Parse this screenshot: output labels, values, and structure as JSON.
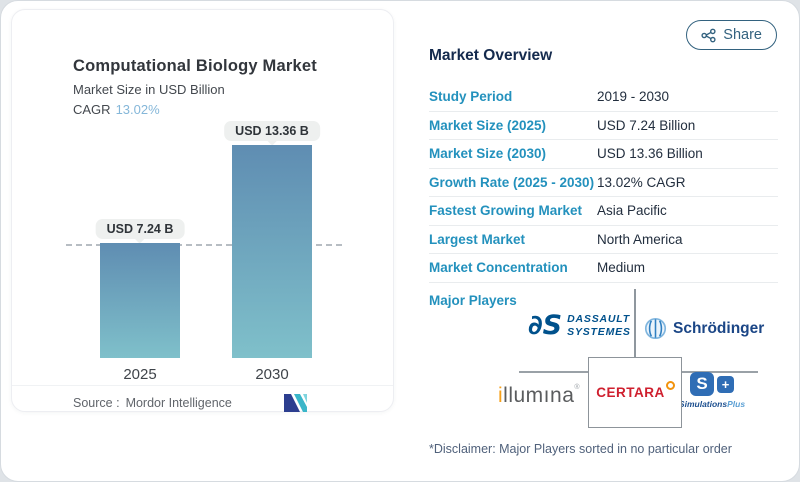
{
  "chart_data": {
    "type": "bar",
    "title": "Computational Biology Market",
    "subtitle": "Market Size in USD Billion",
    "cagr_label": "CAGR",
    "cagr_value": "13.02%",
    "categories": [
      "2025",
      "2030"
    ],
    "values": [
      7.24,
      13.36
    ],
    "value_labels": [
      "USD 7.24 B",
      "USD 13.36 B"
    ],
    "reference_line_value": 7.24,
    "ylim": [
      0,
      14
    ],
    "source_label": "Source :",
    "source_value": "Mordor Intelligence",
    "bar_color_top": "#5f8db2",
    "bar_color_bottom": "#7fc0ca"
  },
  "share": {
    "label": "Share"
  },
  "overview": {
    "title": "Market Overview",
    "rows": [
      {
        "label": "Study Period",
        "value": "2019 - 2030"
      },
      {
        "label": "Market Size (2025)",
        "value": "USD 7.24 Billion"
      },
      {
        "label": "Market Size (2030)",
        "value": "USD 13.36 Billion"
      },
      {
        "label": "Growth Rate (2025 - 2030)",
        "value": "13.02% CAGR"
      },
      {
        "label": "Fastest Growing Market",
        "value": "Asia Pacific"
      },
      {
        "label": "Largest Market",
        "value": "North America"
      },
      {
        "label": "Market Concentration",
        "value": "Medium"
      }
    ],
    "major_players_label": "Major Players",
    "players": {
      "dassault": {
        "mark": "∂S",
        "line1": "DASSAULT",
        "line2": "SYSTEMES"
      },
      "schrodinger": {
        "name": "Schrödinger"
      },
      "illumina": {
        "first": "i",
        "rest": "llumına",
        "reg": "®"
      },
      "certara": {
        "name": "CERTARA"
      },
      "simulationsplus": {
        "s": "S",
        "plus": "+",
        "name1": "Simulations",
        "name2": "Plus"
      }
    },
    "disclaimer": "*Disclaimer: Major Players sorted in no particular order"
  },
  "colors": {
    "label_blue": "#2391bd",
    "navy_text": "#142a4d",
    "share_blue": "#33627f",
    "cagr_blue": "#85b7d9"
  }
}
